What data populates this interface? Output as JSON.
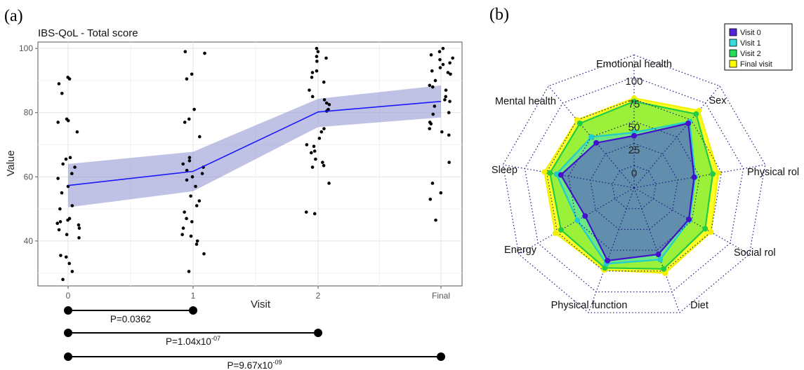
{
  "panel_a": {
    "letter": "(a)"
  },
  "panel_b": {
    "letter": "(b)"
  },
  "chart_data": [
    {
      "type": "scatter",
      "title": "IBS-QoL - Total score",
      "xlabel": "Visit",
      "ylabel": "Value",
      "categories": [
        "0",
        "1",
        "2",
        "Final"
      ],
      "ylim": [
        26,
        102
      ],
      "yticks": [
        "40",
        "60",
        "80",
        "100"
      ],
      "grid": true,
      "mean_line": {
        "color": "#1a1aff",
        "values": [
          57.3,
          61.7,
          80.2,
          83.5
        ]
      },
      "ci_band": {
        "color": "#8c8fcf",
        "lower": [
          50.5,
          55.5,
          75.5,
          78.5
        ],
        "upper": [
          64.0,
          67.8,
          84.3,
          88.5
        ]
      },
      "points": [
        {
          "x": 0,
          "y": 91.0
        },
        {
          "x": 0,
          "y": 90.5
        },
        {
          "x": 0,
          "y": 89.0
        },
        {
          "x": 0,
          "y": 86.0
        },
        {
          "x": 0,
          "y": 78.0
        },
        {
          "x": 0,
          "y": 77.5
        },
        {
          "x": 0,
          "y": 77.0
        },
        {
          "x": 0,
          "y": 74.0
        },
        {
          "x": 0,
          "y": 66.0
        },
        {
          "x": 0,
          "y": 65.5
        },
        {
          "x": 0,
          "y": 64.0
        },
        {
          "x": 0,
          "y": 63.0
        },
        {
          "x": 0,
          "y": 61.0
        },
        {
          "x": 0,
          "y": 59.5
        },
        {
          "x": 0,
          "y": 57.0
        },
        {
          "x": 0,
          "y": 55.0
        },
        {
          "x": 0,
          "y": 51.0
        },
        {
          "x": 0,
          "y": 50.0
        },
        {
          "x": 0,
          "y": 47.0
        },
        {
          "x": 0,
          "y": 46.5
        },
        {
          "x": 0,
          "y": 46.0
        },
        {
          "x": 0,
          "y": 45.5
        },
        {
          "x": 0,
          "y": 45.0
        },
        {
          "x": 0,
          "y": 44.0
        },
        {
          "x": 0,
          "y": 43.5
        },
        {
          "x": 0,
          "y": 42.0
        },
        {
          "x": 0,
          "y": 41.0
        },
        {
          "x": 0,
          "y": 35.5
        },
        {
          "x": 0,
          "y": 35.0
        },
        {
          "x": 0,
          "y": 33.0
        },
        {
          "x": 0,
          "y": 30.5
        },
        {
          "x": 0,
          "y": 28.0
        },
        {
          "x": 1,
          "y": 99.0
        },
        {
          "x": 1,
          "y": 98.5
        },
        {
          "x": 1,
          "y": 92.0
        },
        {
          "x": 1,
          "y": 90.5
        },
        {
          "x": 1,
          "y": 81.0
        },
        {
          "x": 1,
          "y": 78.0
        },
        {
          "x": 1,
          "y": 77.0
        },
        {
          "x": 1,
          "y": 72.5
        },
        {
          "x": 1,
          "y": 66.0
        },
        {
          "x": 1,
          "y": 65.0
        },
        {
          "x": 1,
          "y": 64.0
        },
        {
          "x": 1,
          "y": 63.0
        },
        {
          "x": 1,
          "y": 62.0
        },
        {
          "x": 1,
          "y": 61.0
        },
        {
          "x": 1,
          "y": 60.0
        },
        {
          "x": 1,
          "y": 59.0
        },
        {
          "x": 1,
          "y": 57.0
        },
        {
          "x": 1,
          "y": 54.0
        },
        {
          "x": 1,
          "y": 52.5
        },
        {
          "x": 1,
          "y": 51.0
        },
        {
          "x": 1,
          "y": 49.0
        },
        {
          "x": 1,
          "y": 47.0
        },
        {
          "x": 1,
          "y": 46.0
        },
        {
          "x": 1,
          "y": 44.0
        },
        {
          "x": 1,
          "y": 42.0
        },
        {
          "x": 1,
          "y": 41.5
        },
        {
          "x": 1,
          "y": 40.0
        },
        {
          "x": 1,
          "y": 39.0
        },
        {
          "x": 1,
          "y": 36.0
        },
        {
          "x": 1,
          "y": 30.5
        },
        {
          "x": 2,
          "y": 100.0
        },
        {
          "x": 2,
          "y": 99.0
        },
        {
          "x": 2,
          "y": 97.5
        },
        {
          "x": 2,
          "y": 97.0
        },
        {
          "x": 2,
          "y": 96.0
        },
        {
          "x": 2,
          "y": 93.0
        },
        {
          "x": 2,
          "y": 92.5
        },
        {
          "x": 2,
          "y": 91.0
        },
        {
          "x": 2,
          "y": 89.5
        },
        {
          "x": 2,
          "y": 87.0
        },
        {
          "x": 2,
          "y": 85.0
        },
        {
          "x": 2,
          "y": 84.0
        },
        {
          "x": 2,
          "y": 83.0
        },
        {
          "x": 2,
          "y": 82.5
        },
        {
          "x": 2,
          "y": 81.0
        },
        {
          "x": 2,
          "y": 80.5
        },
        {
          "x": 2,
          "y": 75.0
        },
        {
          "x": 2,
          "y": 74.0
        },
        {
          "x": 2,
          "y": 72.0
        },
        {
          "x": 2,
          "y": 70.0
        },
        {
          "x": 2,
          "y": 69.5
        },
        {
          "x": 2,
          "y": 68.0
        },
        {
          "x": 2,
          "y": 67.5
        },
        {
          "x": 2,
          "y": 65.5
        },
        {
          "x": 2,
          "y": 64.5
        },
        {
          "x": 2,
          "y": 63.5
        },
        {
          "x": 2,
          "y": 63.0
        },
        {
          "x": 2,
          "y": 58.0
        },
        {
          "x": 2,
          "y": 49.0
        },
        {
          "x": 2,
          "y": 48.5
        },
        {
          "x": 3,
          "y": 100.0
        },
        {
          "x": 3,
          "y": 99.0
        },
        {
          "x": 3,
          "y": 98.0
        },
        {
          "x": 3,
          "y": 97.0
        },
        {
          "x": 3,
          "y": 96.5
        },
        {
          "x": 3,
          "y": 95.5
        },
        {
          "x": 3,
          "y": 95.0
        },
        {
          "x": 3,
          "y": 94.0
        },
        {
          "x": 3,
          "y": 93.0
        },
        {
          "x": 3,
          "y": 92.5
        },
        {
          "x": 3,
          "y": 92.0
        },
        {
          "x": 3,
          "y": 90.0
        },
        {
          "x": 3,
          "y": 88.5
        },
        {
          "x": 3,
          "y": 88.0
        },
        {
          "x": 3,
          "y": 87.0
        },
        {
          "x": 3,
          "y": 85.0
        },
        {
          "x": 3,
          "y": 84.0
        },
        {
          "x": 3,
          "y": 83.5
        },
        {
          "x": 3,
          "y": 82.0
        },
        {
          "x": 3,
          "y": 80.0
        },
        {
          "x": 3,
          "y": 79.5
        },
        {
          "x": 3,
          "y": 77.0
        },
        {
          "x": 3,
          "y": 76.5
        },
        {
          "x": 3,
          "y": 75.0
        },
        {
          "x": 3,
          "y": 74.0
        },
        {
          "x": 3,
          "y": 73.0
        },
        {
          "x": 3,
          "y": 64.5
        },
        {
          "x": 3,
          "y": 58.0
        },
        {
          "x": 3,
          "y": 55.0
        },
        {
          "x": 3,
          "y": 53.0
        },
        {
          "x": 3,
          "y": 46.5
        }
      ],
      "comparisons": [
        {
          "from": 0,
          "to": 1,
          "label": "P=0.0362"
        },
        {
          "from": 0,
          "to": 2,
          "label_prefix": "P=1.04x10",
          "label_exp": "-07"
        },
        {
          "from": 0,
          "to": 3,
          "label_prefix": "P=9.67x10",
          "label_exp": "-09"
        }
      ]
    },
    {
      "type": "radar",
      "axes": [
        "Emotional health",
        "Sex",
        "Physical rol",
        "Social rol",
        "Diet",
        "Physical function",
        "Energy",
        "Sleep",
        "Mental health"
      ],
      "rticks": [
        "0",
        "25",
        "50",
        "75",
        "100"
      ],
      "rlim": [
        0,
        100
      ],
      "legend_position": "top-right",
      "series": [
        {
          "name": "Final visit",
          "color": "#ffff00",
          "edge": "#f0f000",
          "values": [
            81,
            91,
            77,
            80,
            82,
            79,
            82,
            82,
            80
          ]
        },
        {
          "name": "Visit 2",
          "color": "#22dd55",
          "edge": "#22cc44",
          "values": [
            78,
            87,
            72,
            74,
            78,
            77,
            76,
            77,
            76
          ]
        },
        {
          "name": "Visit 1",
          "color": "#33dddd",
          "edge": "#22cccc",
          "values": [
            50,
            78,
            56,
            58,
            69,
            73,
            59,
            71,
            60
          ]
        },
        {
          "name": "Visit 0",
          "color": "#5522dd",
          "edge": "#4411cc",
          "values": [
            47,
            76,
            55,
            57,
            64,
            70,
            51,
            67,
            53
          ]
        }
      ],
      "legend_order": [
        "Visit 0",
        "Visit 1",
        "Visit 2",
        "Final visit"
      ]
    }
  ]
}
